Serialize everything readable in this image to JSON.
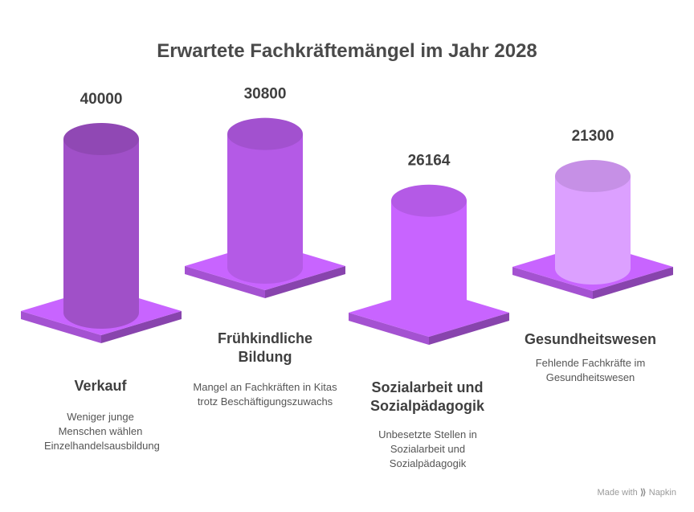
{
  "chart_data": {
    "type": "bar",
    "title": "Erwartete Fachkräftemängel im Jahr 2028",
    "categories": [
      "Verkauf",
      "Frühkindliche Bildung",
      "Sozialarbeit und Sozialpädagogik",
      "Gesundheitswesen"
    ],
    "values": [
      40000,
      30800,
      26164,
      21300
    ],
    "value_labels": [
      "40000",
      "30800",
      "26164",
      "21300"
    ],
    "descriptions": [
      "Weniger junge Menschen wählen Einzelhandelsausbildung",
      "Mangel an Fachkräften in Kitas trotz Beschäftigungszuwachs",
      "Unbesetzte Stellen in Sozialarbeit und Sozialpädagogik",
      "Fehlende Fachkräfte im Gesundheitswesen"
    ],
    "colors": [
      "#a050c8",
      "#b45ae6",
      "#c864ff",
      "#dca0ff"
    ],
    "xlabel": "",
    "ylabel": ""
  },
  "footer": {
    "made_with": "Made with",
    "brand": "Napkin"
  }
}
